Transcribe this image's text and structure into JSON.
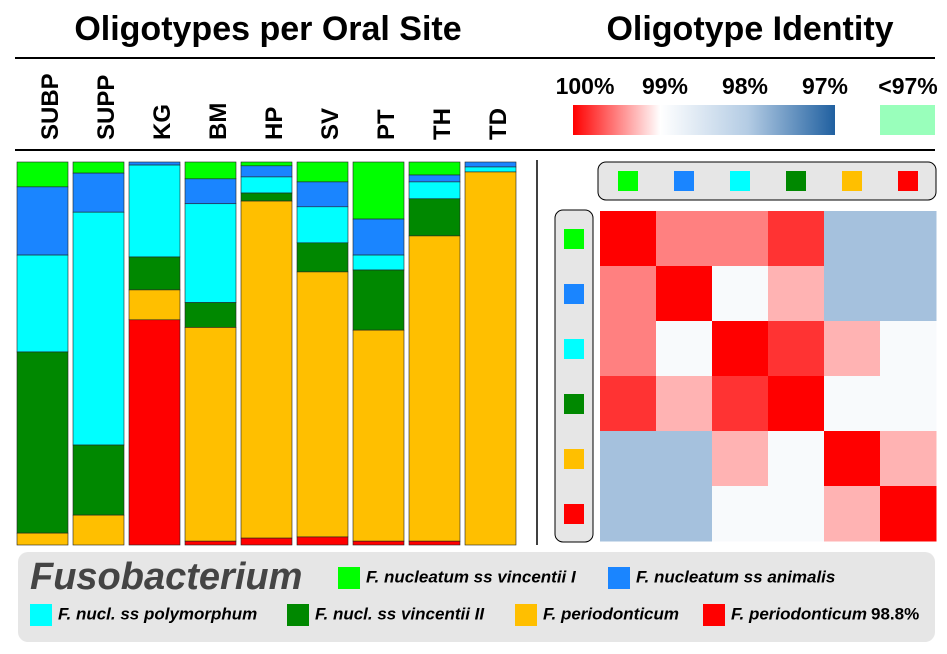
{
  "chart_data": [
    {
      "type": "stacked_bar",
      "title": "Oligotypes per Oral Site",
      "categories": [
        "SUBP",
        "SUPP",
        "KG",
        "BM",
        "HP",
        "SV",
        "PT",
        "TH",
        "TD"
      ],
      "ylim": [
        0,
        100
      ],
      "legend_title": "Fusobacterium",
      "series": [
        {
          "name": "F. nucleatum ss vincentii I",
          "color": "#00ff00",
          "values": [
            6.5,
            2.9,
            0,
            4.4,
            1,
            5.2,
            14.9,
            3.4,
            0
          ]
        },
        {
          "name": "F. nucleatum ss animalis",
          "color": "#1a85ff",
          "values": [
            17.8,
            10.2,
            0.8,
            6.5,
            2.9,
            6.5,
            9.4,
            1.8,
            1.3
          ]
        },
        {
          "name": "F. nucl. ss polymorphum",
          "color": "#00ffff",
          "values": [
            25.3,
            60.8,
            24,
            25.8,
            4.2,
            9.4,
            3.9,
            4.4,
            1.3
          ]
        },
        {
          "name": "F. nucl. ss vincentii II",
          "color": "#008800",
          "values": [
            47.3,
            18.3,
            8.6,
            6.5,
            2.1,
            7.6,
            15.7,
            9.7,
            0
          ]
        },
        {
          "name": "F. periodonticum",
          "color": "#ffbf00",
          "values": [
            3.1,
            7.8,
            7.8,
            55.8,
            88,
            69.2,
            55.1,
            79.7,
            97.4
          ]
        },
        {
          "name": "F. periodonticum",
          "label_suffix": "98.8%",
          "color": "#ff0000",
          "values": [
            0,
            0,
            58.8,
            1,
            1.8,
            2.1,
            1,
            1,
            0
          ]
        }
      ]
    },
    {
      "type": "heatmap",
      "title": "Oligotype Identity",
      "values": [
        [
          100,
          99.5,
          99.5,
          99.8,
          97.9,
          97.9
        ],
        [
          99.5,
          100,
          98.9,
          99.3,
          97.9,
          97.9
        ],
        [
          99.5,
          98.9,
          100,
          99.8,
          99.3,
          98.9
        ],
        [
          99.8,
          99.3,
          99.8,
          100,
          98.9,
          98.9
        ],
        [
          97.9,
          97.9,
          99.3,
          98.9,
          100,
          99.3
        ],
        [
          97.9,
          97.9,
          98.9,
          98.9,
          99.3,
          100
        ]
      ],
      "clim": [
        100,
        97
      ],
      "colorscale": [
        [
          100,
          "#ff0000"
        ],
        [
          99,
          "#ffffff"
        ],
        [
          98,
          "#b4cce4"
        ],
        [
          97,
          "#2060a0"
        ]
      ],
      "cticks": [
        {
          "value": 100,
          "label": "100%"
        },
        {
          "value": 99,
          "label": "99%"
        },
        {
          "value": 98,
          "label": "98%"
        },
        {
          "value": 97,
          "label": "97%"
        }
      ],
      "below_label": "<97%",
      "below_color": "#99ffbb"
    }
  ]
}
